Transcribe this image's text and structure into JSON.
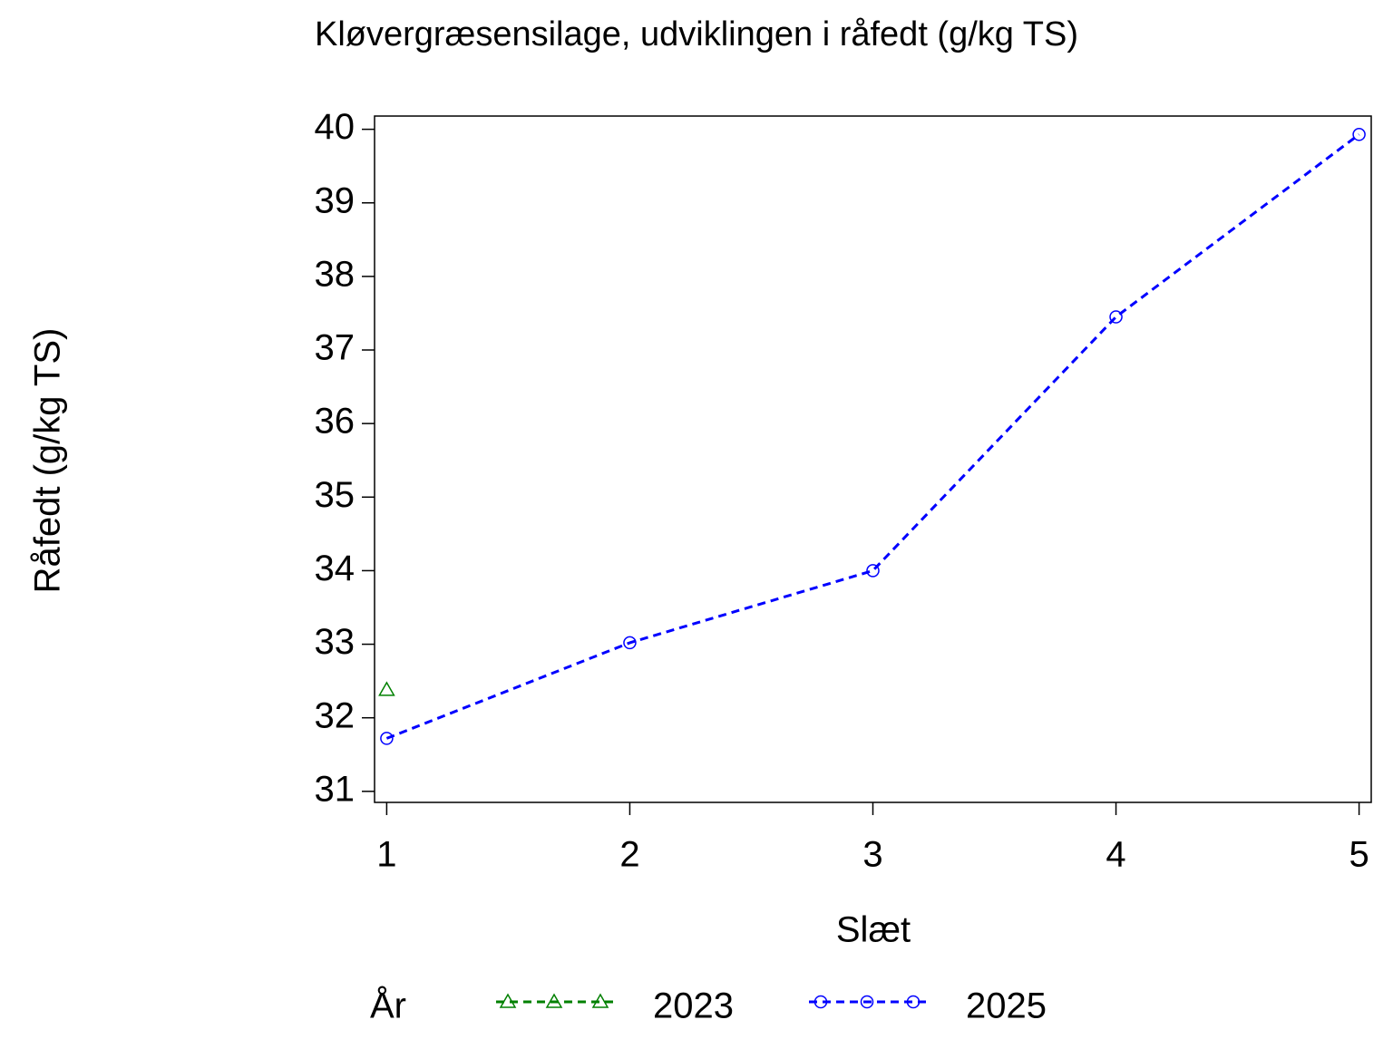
{
  "chart_data": {
    "type": "line",
    "title": "Kløvergræsensilage,  udviklingen  i  råfedt  (g/kg  TS)",
    "x_label": "Slæt",
    "y_label": "Råfedt  (g/kg  TS)",
    "legend_title": "År",
    "x": [
      1,
      2,
      3,
      4,
      5
    ],
    "series": [
      {
        "name": "2023",
        "color": "#008000",
        "marker": "triangle",
        "values": [
          32.38,
          null,
          null,
          null,
          null
        ]
      },
      {
        "name": "2025",
        "color": "#0000ff",
        "marker": "circle",
        "values": [
          31.72,
          33.02,
          34.0,
          37.45,
          39.93
        ]
      }
    ],
    "xlim": [
      0.95,
      5.05
    ],
    "xticks": [
      1,
      2,
      3,
      4,
      5
    ],
    "ylim": [
      30.85,
      40.18
    ],
    "yticks": [
      31,
      32,
      33,
      34,
      35,
      36,
      37,
      38,
      39,
      40
    ],
    "grid": false,
    "legend_position": "bottom"
  }
}
